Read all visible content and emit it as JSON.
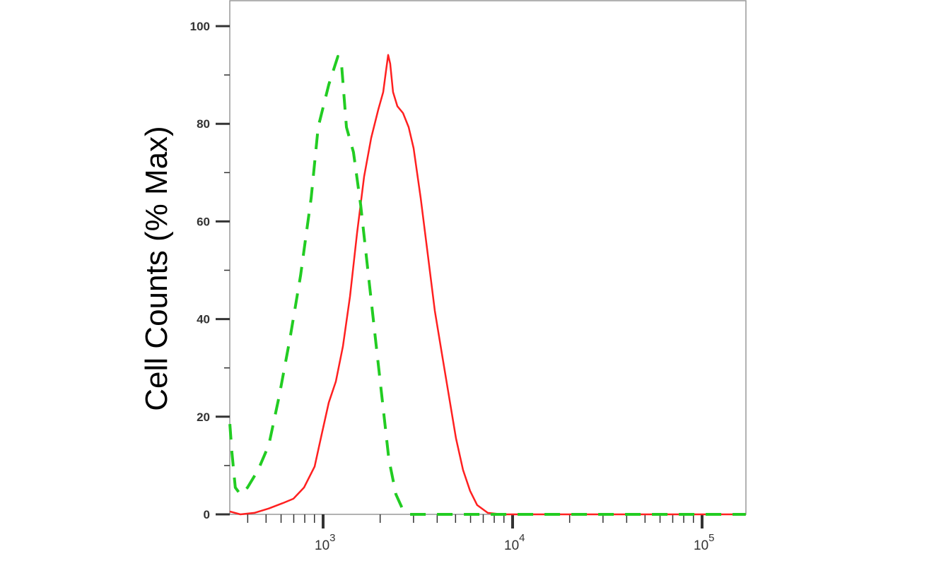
{
  "chart_data": {
    "type": "line",
    "title": "",
    "xlabel": "",
    "ylabel": "Cell Counts (% Max)",
    "x_scale": "log",
    "xlim": [
      322,
      170000
    ],
    "ylim": [
      0,
      100
    ],
    "grid": false,
    "legend": "none",
    "y_ticks": [
      "0",
      "20",
      "40",
      "60",
      "80",
      "100"
    ],
    "x_ticks": [
      {
        "base": "10",
        "exp": "3"
      },
      {
        "base": "10",
        "exp": "4"
      },
      {
        "base": "10",
        "exp": "5"
      }
    ],
    "series": [
      {
        "color": "#ff2020",
        "style": "solid",
        "x": [
          322,
          366,
          434,
          517,
          613,
          697,
          793,
          902,
          983,
          1071,
          1167,
          1272,
          1386,
          1510,
          1646,
          1793,
          1954,
          2075,
          2148,
          2204,
          2260,
          2340,
          2464,
          2641,
          2827,
          3004,
          3273,
          3566,
          3886,
          4233,
          4613,
          5026,
          5477,
          5968,
          6503,
          7395,
          8790,
          170000
        ],
        "y": [
          0.6,
          0,
          0.3,
          1.2,
          2.3,
          3.2,
          5.5,
          9.8,
          16.4,
          22.9,
          27.2,
          34.4,
          44.6,
          57.6,
          69.2,
          77.1,
          82.9,
          86.5,
          90.9,
          94.1,
          92.3,
          86.5,
          83.6,
          82.2,
          79.3,
          75.0,
          64.8,
          53.3,
          41.7,
          33.0,
          24.3,
          15.6,
          9.1,
          4.8,
          1.9,
          0.3,
          0,
          0
        ]
      },
      {
        "color": "#22cc22",
        "style": "dashed",
        "x": [
          322,
          330,
          344,
          366,
          399,
          454,
          517,
          587,
          668,
          760,
          865,
          942,
          1071,
          1197,
          1250,
          1328,
          1446,
          1578,
          1718,
          1872,
          2040,
          2223,
          2422,
          2641,
          2877,
          170000
        ],
        "y": [
          18.5,
          12.7,
          5.5,
          4.1,
          5.5,
          9.1,
          14.2,
          24.3,
          35.9,
          48.9,
          64.8,
          79.3,
          88.0,
          93.8,
          92.3,
          79.3,
          74.2,
          63.4,
          50.4,
          37.3,
          24.3,
          11.3,
          4.1,
          0.9,
          0,
          0
        ]
      }
    ]
  }
}
